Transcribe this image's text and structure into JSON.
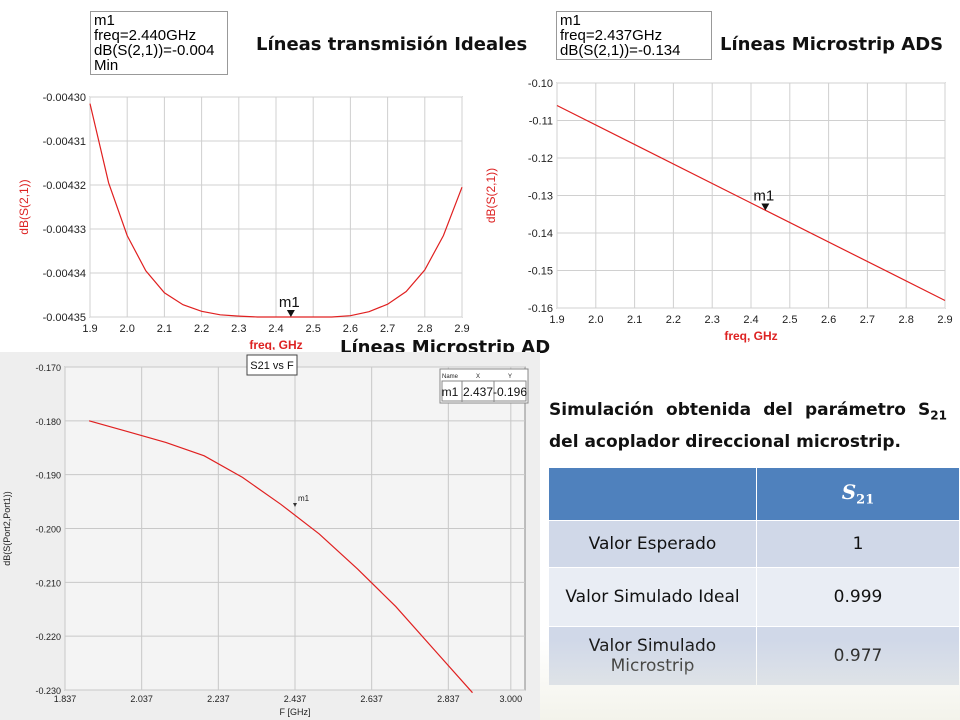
{
  "titles": {
    "ideal": "Líneas transmisión Ideales",
    "ads": "Líneas Microstrip ADS",
    "ad": "Líneas Microstrip AD"
  },
  "marker_ideal": [
    "m1",
    "freq=2.440GHz",
    "dB(S(2,1))=-0.004",
    "Min"
  ],
  "marker_ads": [
    "m1",
    "freq=2.437GHz",
    "dB(S(2,1))=-0.134"
  ],
  "description": {
    "pre": "Simulación obtenida del parámetro S",
    "sub": "21",
    "post": " del acoplador direccional microstrip."
  },
  "table": {
    "header": [
      "",
      "S",
      "21"
    ],
    "rows": [
      [
        "Valor Esperado",
        "1"
      ],
      [
        "Valor  Simulado Ideal",
        "0.999"
      ],
      [
        "Valor Simulado Microstrip",
        "0.977"
      ]
    ]
  },
  "colors": {
    "trace": "#e02020",
    "axis_label": "#dd2222",
    "table_header": "#4f81bd"
  },
  "chart_data": [
    {
      "type": "line",
      "ylabel": "dB(S(2,1))",
      "xlabel": "freq, GHz",
      "xlim": [
        1.9,
        2.9
      ],
      "ylim": [
        -0.00435,
        -0.0043
      ],
      "xticks": [
        "1.9",
        "2.0",
        "2.1",
        "2.2",
        "2.3",
        "2.4",
        "2.5",
        "2.6",
        "2.7",
        "2.8",
        "2.9"
      ],
      "yticks": [
        "-0.00430",
        "-0.00431",
        "-0.00432",
        "-0.00433",
        "-0.00434",
        "-0.00435"
      ],
      "grid": true,
      "x": [
        1.9,
        1.95,
        2.0,
        2.05,
        2.1,
        2.15,
        2.2,
        2.25,
        2.3,
        2.35,
        2.4,
        2.45,
        2.5,
        2.55,
        2.6,
        2.65,
        2.7,
        2.75,
        2.8,
        2.85,
        2.9
      ],
      "y": [
        -0.0043015,
        -0.0043195,
        -0.0043315,
        -0.0043395,
        -0.0043445,
        -0.0043472,
        -0.0043487,
        -0.0043495,
        -0.0043498,
        -0.00435,
        -0.00435,
        -0.00435,
        -0.00435,
        -0.00435,
        -0.0043497,
        -0.0043488,
        -0.0043471,
        -0.0043442,
        -0.0043393,
        -0.0043315,
        -0.0043205
      ],
      "marker": {
        "label": "m1",
        "x": 2.44,
        "y": -0.00435
      }
    },
    {
      "type": "line",
      "ylabel": "dB(S(2,1))",
      "xlabel": "freq, GHz",
      "xlim": [
        1.9,
        2.9
      ],
      "ylim": [
        -0.16,
        -0.1
      ],
      "xticks": [
        "1.9",
        "2.0",
        "2.1",
        "2.2",
        "2.3",
        "2.4",
        "2.5",
        "2.6",
        "2.7",
        "2.8",
        "2.9"
      ],
      "yticks": [
        "-0.10",
        "-0.11",
        "-0.12",
        "-0.13",
        "-0.14",
        "-0.15",
        "-0.16"
      ],
      "grid": true,
      "x": [
        1.9,
        2.4,
        2.9
      ],
      "y": [
        -0.106,
        -0.132,
        -0.158
      ],
      "marker": {
        "label": "m1",
        "x": 2.437,
        "y": -0.134
      }
    },
    {
      "type": "line",
      "ylabel": "dB(S(Port2,Port1))",
      "xlabel": "F [GHz]",
      "legend": "S21 vs F",
      "xlim": [
        1.837,
        3.037
      ],
      "ylim": [
        -0.23,
        -0.17
      ],
      "xticks": [
        "1.837",
        "2.037",
        "2.237",
        "2.437",
        "2.637",
        "2.837",
        "3.000"
      ],
      "yticks": [
        "-0.170",
        "-0.180",
        "-0.190",
        "-0.200",
        "-0.210",
        "-0.220",
        "-0.230"
      ],
      "grid": true,
      "x": [
        1.9,
        2.0,
        2.1,
        2.2,
        2.3,
        2.4,
        2.5,
        2.6,
        2.7,
        2.8,
        2.9
      ],
      "y": [
        -0.18,
        -0.182,
        -0.184,
        -0.1865,
        -0.1905,
        -0.1955,
        -0.201,
        -0.2075,
        -0.2145,
        -0.2225,
        -0.2305
      ],
      "marker": {
        "label": "m1",
        "x": 2.437,
        "y": -0.196
      },
      "marker_table": {
        "headers": [
          "Name",
          "X",
          "Y"
        ],
        "row": [
          "m1",
          "2.437",
          "-0.196"
        ]
      }
    }
  ]
}
